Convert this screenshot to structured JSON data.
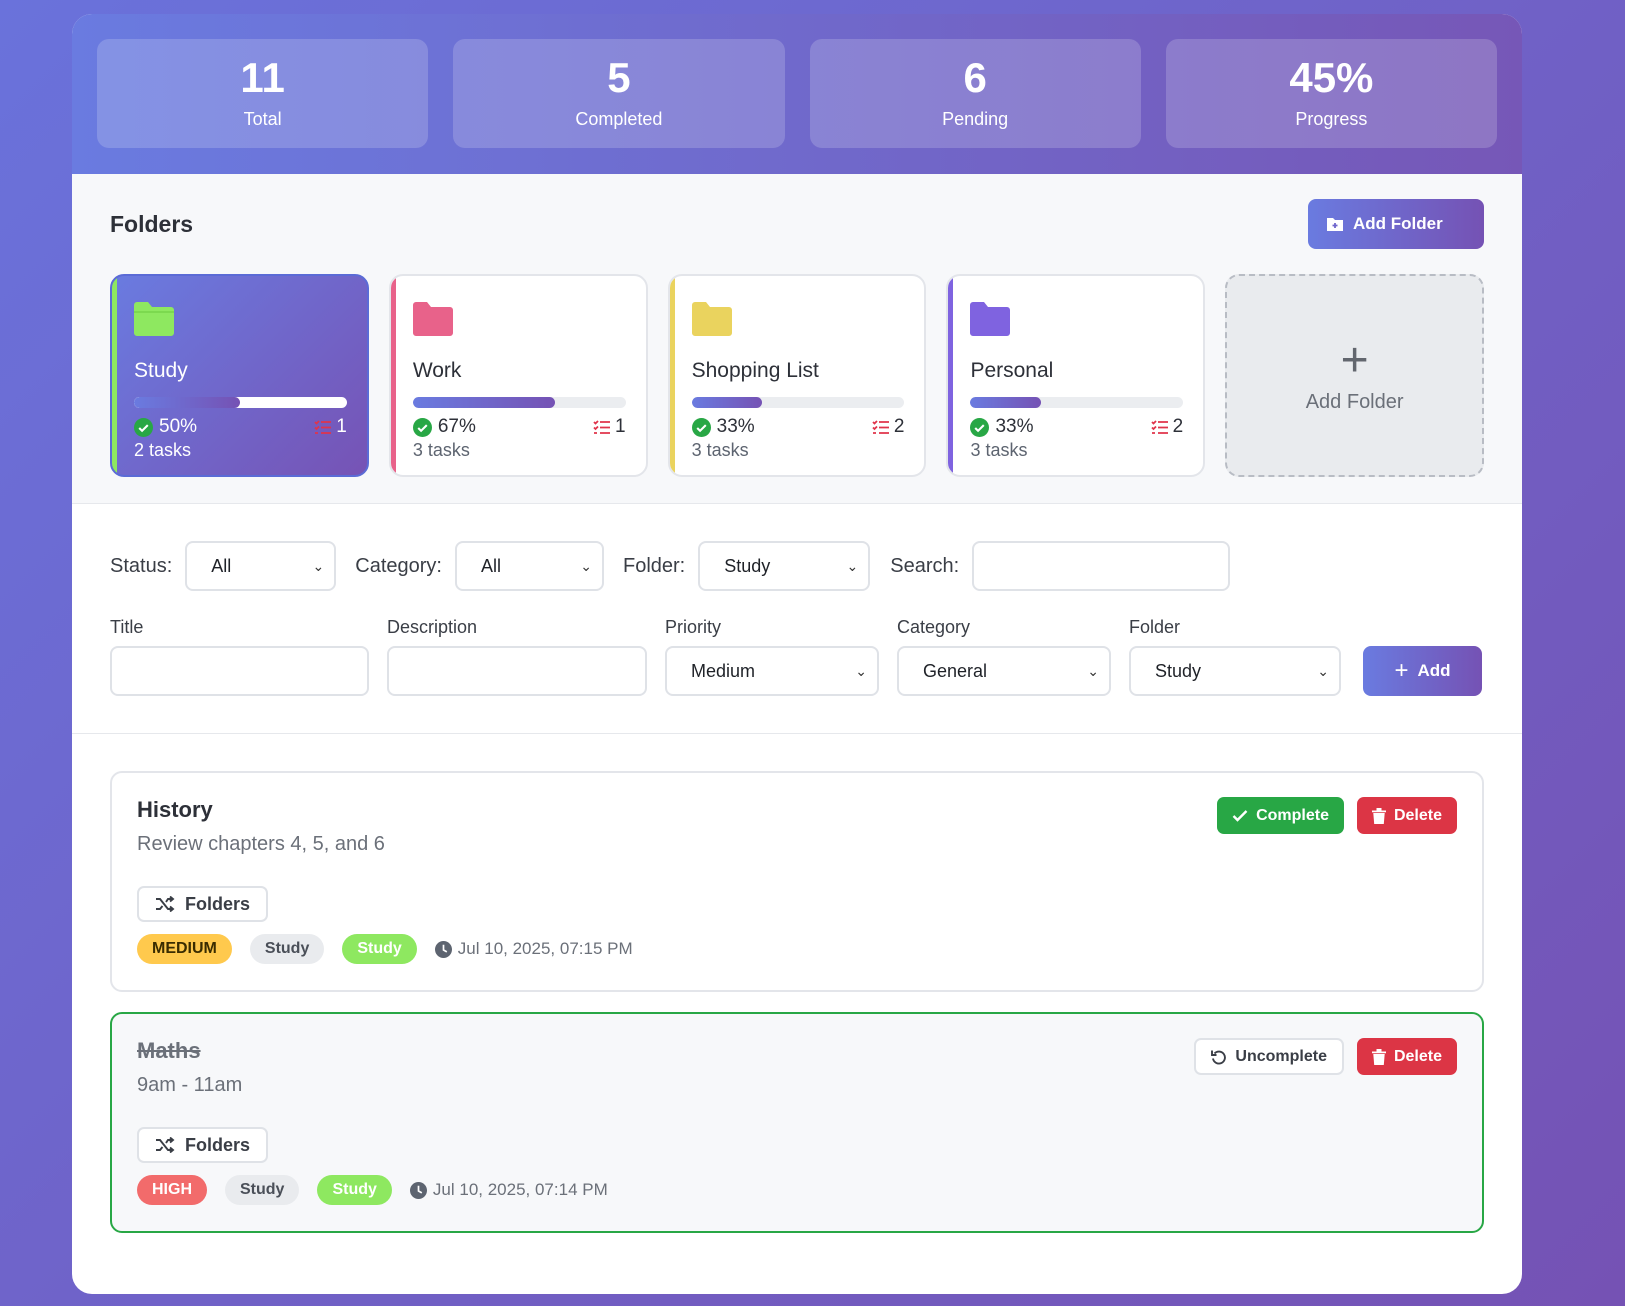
{
  "stats": [
    {
      "value": "11",
      "label": "Total"
    },
    {
      "value": "5",
      "label": "Completed"
    },
    {
      "value": "6",
      "label": "Pending"
    },
    {
      "value": "45%",
      "label": "Progress"
    }
  ],
  "folders": {
    "title": "Folders",
    "add_button": "Add Folder",
    "items": [
      {
        "name": "Study",
        "progress": 50,
        "progress_label": "50%",
        "pending": "1",
        "tasks": "2 tasks",
        "color": "#8ee860",
        "active": true
      },
      {
        "name": "Work",
        "progress": 67,
        "progress_label": "67%",
        "pending": "1",
        "tasks": "3 tasks",
        "color": "#e8628a"
      },
      {
        "name": "Shopping List",
        "progress": 33,
        "progress_label": "33%",
        "pending": "2",
        "tasks": "3 tasks",
        "color": "#ead35e"
      },
      {
        "name": "Personal",
        "progress": 33,
        "progress_label": "33%",
        "pending": "2",
        "tasks": "3 tasks",
        "color": "#7f63e0"
      }
    ],
    "add_card_label": "Add Folder"
  },
  "filters": {
    "status_label": "Status:",
    "status_value": "All",
    "category_label": "Category:",
    "category_value": "All",
    "folder_label": "Folder:",
    "folder_value": "Study",
    "search_label": "Search:"
  },
  "form": {
    "title_label": "Title",
    "description_label": "Description",
    "priority_label": "Priority",
    "priority_value": "Medium",
    "category_label": "Category",
    "category_value": "General",
    "folder_label": "Folder",
    "folder_value": "Study",
    "add_button": "Add"
  },
  "tasks": [
    {
      "title": "History",
      "description": "Review chapters 4, 5, and 6",
      "primary_action": "Complete",
      "delete_action": "Delete",
      "move_label": "Folders",
      "priority": "MEDIUM",
      "category": "Study",
      "folder": "Study",
      "time": "Jul 10, 2025, 07:15 PM"
    },
    {
      "title": "Maths",
      "description": "9am - 11am",
      "primary_action": "Uncomplete",
      "delete_action": "Delete",
      "move_label": "Folders",
      "priority": "HIGH",
      "category": "Study",
      "folder": "Study",
      "time": "Jul 10, 2025, 07:14 PM"
    }
  ]
}
